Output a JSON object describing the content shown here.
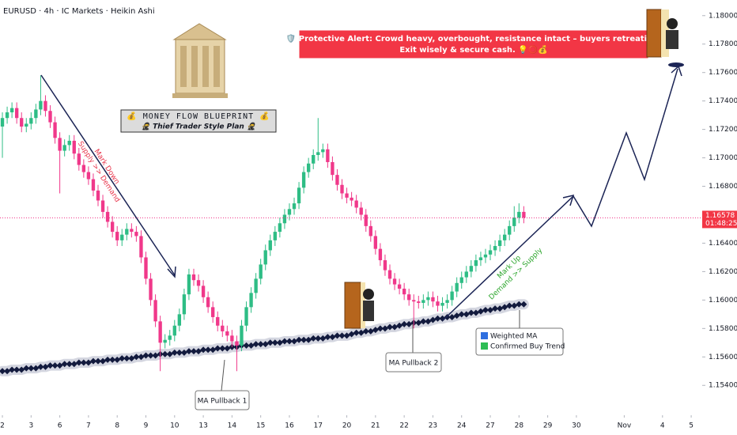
{
  "chart_data": {
    "type": "candlestick",
    "title": "EURUSD · 4h · IC Markets · Heikin Ashi",
    "up_color": "#2ebd85",
    "down_color": "#f0388a",
    "open": [
      1.1722,
      1.1728,
      1.1732,
      1.1735,
      1.1728,
      1.1722,
      1.1724,
      1.1728,
      1.1734,
      1.174,
      1.1733,
      1.1725,
      1.1714,
      1.1705,
      1.1709,
      1.1712,
      1.1703,
      1.1695,
      1.169,
      1.1685,
      1.1677,
      1.167,
      1.1662,
      1.1655,
      1.1648,
      1.1642,
      1.1646,
      1.165,
      1.1648,
      1.1645,
      1.163,
      1.1615,
      1.16,
      1.1585,
      1.157,
      1.1572,
      1.1575,
      1.1582,
      1.159,
      1.1604,
      1.1618,
      1.1614,
      1.161,
      1.1602,
      1.1595,
      1.1588,
      1.1582,
      1.1578,
      1.1575,
      1.1571,
      1.1568,
      1.1582,
      1.1595,
      1.1605,
      1.1615,
      1.1625,
      1.1635,
      1.1642,
      1.1648,
      1.1654,
      1.166,
      1.1664,
      1.1668,
      1.1679,
      1.169,
      1.1696,
      1.1702,
      1.1704,
      1.1706,
      1.1697,
      1.1688,
      1.1681,
      1.1675,
      1.1672,
      1.167,
      1.1665,
      1.166,
      1.1652,
      1.1645,
      1.1636,
      1.1628,
      1.1621,
      1.1615,
      1.1611,
      1.1608,
      1.1604,
      1.16,
      1.1599,
      1.1598,
      1.16,
      1.1602,
      1.1599,
      1.1596,
      1.1598,
      1.16,
      1.1606,
      1.1612,
      1.1616,
      1.162,
      1.1624,
      1.1628,
      1.163,
      1.1632,
      1.1635,
      1.1638,
      1.1642,
      1.1646,
      1.1652,
      1.1658,
      1.1662
    ],
    "high": [
      1.1732,
      1.1736,
      1.1739,
      1.1739,
      1.1732,
      1.1728,
      1.1732,
      1.1738,
      1.1758,
      1.1744,
      1.1737,
      1.1729,
      1.1718,
      1.1713,
      1.1716,
      1.1716,
      1.1707,
      1.1699,
      1.1694,
      1.1689,
      1.1681,
      1.1674,
      1.1666,
      1.1659,
      1.1652,
      1.165,
      1.1654,
      1.1654,
      1.1652,
      1.1649,
      1.1634,
      1.1619,
      1.1604,
      1.1589,
      1.1576,
      1.1579,
      1.1586,
      1.1594,
      1.1608,
      1.1622,
      1.1622,
      1.1618,
      1.1614,
      1.1606,
      1.1599,
      1.1592,
      1.1586,
      1.1582,
      1.1579,
      1.1575,
      1.1586,
      1.1599,
      1.1609,
      1.1619,
      1.1629,
      1.1639,
      1.1646,
      1.1652,
      1.1658,
      1.1664,
      1.1668,
      1.1672,
      1.1683,
      1.1694,
      1.17,
      1.1706,
      1.1728,
      1.171,
      1.171,
      1.1701,
      1.1692,
      1.1685,
      1.1679,
      1.1676,
      1.1674,
      1.1669,
      1.1664,
      1.1656,
      1.1649,
      1.164,
      1.1632,
      1.1625,
      1.1619,
      1.1615,
      1.1612,
      1.1608,
      1.1604,
      1.1603,
      1.1604,
      1.1606,
      1.1606,
      1.1603,
      1.1602,
      1.1604,
      1.161,
      1.1616,
      1.162,
      1.1624,
      1.1628,
      1.1632,
      1.1634,
      1.1636,
      1.1639,
      1.1642,
      1.1646,
      1.165,
      1.1656,
      1.1666,
      1.1668,
      1.1666
    ],
    "low": [
      1.17,
      1.1724,
      1.1728,
      1.1724,
      1.1718,
      1.1718,
      1.172,
      1.1724,
      1.173,
      1.1729,
      1.1721,
      1.171,
      1.1675,
      1.1701,
      1.1705,
      1.1699,
      1.1691,
      1.1686,
      1.1681,
      1.1673,
      1.1666,
      1.1658,
      1.1651,
      1.1644,
      1.1638,
      1.1638,
      1.1642,
      1.1644,
      1.1641,
      1.1626,
      1.1611,
      1.1596,
      1.1581,
      1.155,
      1.1566,
      1.1568,
      1.1571,
      1.1578,
      1.1586,
      1.16,
      1.161,
      1.1606,
      1.1598,
      1.1591,
      1.1584,
      1.1578,
      1.1574,
      1.1571,
      1.1567,
      1.155,
      1.1564,
      1.1578,
      1.1591,
      1.1601,
      1.1611,
      1.1621,
      1.1631,
      1.1638,
      1.1644,
      1.165,
      1.1656,
      1.166,
      1.1664,
      1.1675,
      1.1686,
      1.1692,
      1.1698,
      1.17,
      1.1693,
      1.1684,
      1.1677,
      1.1671,
      1.1668,
      1.1666,
      1.1661,
      1.1656,
      1.1648,
      1.1641,
      1.1632,
      1.1624,
      1.1617,
      1.1611,
      1.1607,
      1.1604,
      1.16,
      1.1596,
      1.158,
      1.1594,
      1.1594,
      1.1596,
      1.1595,
      1.1592,
      1.1592,
      1.1594,
      1.1596,
      1.1602,
      1.1608,
      1.1612,
      1.1616,
      1.162,
      1.1624,
      1.1626,
      1.1628,
      1.1631,
      1.1634,
      1.1638,
      1.1642,
      1.1648,
      1.1654,
      1.1654
    ],
    "close": [
      1.1728,
      1.1732,
      1.1735,
      1.1728,
      1.1722,
      1.1724,
      1.1728,
      1.1734,
      1.174,
      1.1733,
      1.1725,
      1.1714,
      1.1705,
      1.1709,
      1.1712,
      1.1703,
      1.1695,
      1.169,
      1.1685,
      1.1677,
      1.167,
      1.1662,
      1.1655,
      1.1648,
      1.1642,
      1.1646,
      1.165,
      1.1648,
      1.1645,
      1.163,
      1.1615,
      1.16,
      1.1585,
      1.157,
      1.1572,
      1.1575,
      1.1582,
      1.159,
      1.1604,
      1.1618,
      1.1614,
      1.161,
      1.1602,
      1.1595,
      1.1588,
      1.1582,
      1.1578,
      1.1575,
      1.1571,
      1.1568,
      1.1582,
      1.1595,
      1.1605,
      1.1615,
      1.1625,
      1.1635,
      1.1642,
      1.1648,
      1.1654,
      1.166,
      1.1664,
      1.1668,
      1.1679,
      1.169,
      1.1696,
      1.1702,
      1.1704,
      1.1706,
      1.1697,
      1.1688,
      1.1681,
      1.1675,
      1.1672,
      1.167,
      1.1665,
      1.166,
      1.1652,
      1.1645,
      1.1636,
      1.1628,
      1.1621,
      1.1615,
      1.1611,
      1.1608,
      1.1604,
      1.16,
      1.1599,
      1.1598,
      1.16,
      1.1602,
      1.1599,
      1.1596,
      1.1598,
      1.16,
      1.1606,
      1.1612,
      1.1616,
      1.162,
      1.1624,
      1.1628,
      1.163,
      1.1632,
      1.1635,
      1.1638,
      1.1642,
      1.1646,
      1.1652,
      1.1658,
      1.1662,
      1.1658
    ],
    "ma": {
      "name": "Weighted MA",
      "color": "#121a3d",
      "values": [
        1.155,
        1.155,
        1.1551,
        1.1551,
        1.1551,
        1.1552,
        1.1552,
        1.1552,
        1.1553,
        1.1553,
        1.1554,
        1.1554,
        1.1554,
        1.1555,
        1.1555,
        1.1555,
        1.1556,
        1.1556,
        1.1556,
        1.1557,
        1.1557,
        1.1557,
        1.1558,
        1.1558,
        1.1558,
        1.1559,
        1.1559,
        1.1559,
        1.156,
        1.156,
        1.1561,
        1.1561,
        1.1561,
        1.1562,
        1.1562,
        1.1562,
        1.1563,
        1.1563,
        1.1563,
        1.1564,
        1.1564,
        1.1564,
        1.1565,
        1.1565,
        1.1565,
        1.1566,
        1.1566,
        1.1566,
        1.1567,
        1.1567,
        1.1568,
        1.1568,
        1.1568,
        1.1569,
        1.1569,
        1.1569,
        1.157,
        1.157,
        1.157,
        1.1571,
        1.1571,
        1.1571,
        1.1572,
        1.1572,
        1.1572,
        1.1573,
        1.1573,
        1.1573,
        1.1574,
        1.1574,
        1.1575,
        1.1575,
        1.1575,
        1.1576,
        1.1577,
        1.1577,
        1.1578,
        1.1578,
        1.1579,
        1.158,
        1.158,
        1.1581,
        1.1581,
        1.1582,
        1.1583,
        1.1583,
        1.1584,
        1.1584,
        1.1585,
        1.1585,
        1.1586,
        1.1587,
        1.1587,
        1.1588,
        1.1588,
        1.1589,
        1.159,
        1.159,
        1.1591,
        1.1591,
        1.1592,
        1.1593,
        1.1593,
        1.1594,
        1.1594,
        1.1595,
        1.1596,
        1.1596,
        1.1597,
        1.1597
      ]
    },
    "trend_label": "Confirmed Buy Trend",
    "ylim": [
      1.1519,
      1.1811
    ],
    "yticks": [
      {
        "value": 1.18,
        "label": "1.18000"
      },
      {
        "value": 1.178,
        "label": "1.17800"
      },
      {
        "value": 1.176,
        "label": "1.17600"
      },
      {
        "value": 1.174,
        "label": "1.17400"
      },
      {
        "value": 1.172,
        "label": "1.17200"
      },
      {
        "value": 1.17,
        "label": "1.17000"
      },
      {
        "value": 1.168,
        "label": "1.16800"
      },
      {
        "value": 1.166,
        "label": "1.16600"
      },
      {
        "value": 1.164,
        "label": "1.16400"
      },
      {
        "value": 1.162,
        "label": "1.16200"
      },
      {
        "value": 1.16,
        "label": "1.16000"
      },
      {
        "value": 1.158,
        "label": "1.15800"
      },
      {
        "value": 1.156,
        "label": "1.15600"
      },
      {
        "value": 1.154,
        "label": "1.15400"
      }
    ],
    "xlim": [
      -0.5,
      146.3
    ],
    "xticks": [
      {
        "value": 0,
        "label": "2"
      },
      {
        "value": 6,
        "label": "3"
      },
      {
        "value": 12,
        "label": "6"
      },
      {
        "value": 18,
        "label": "7"
      },
      {
        "value": 24,
        "label": "8"
      },
      {
        "value": 30,
        "label": "9"
      },
      {
        "value": 36,
        "label": "10"
      },
      {
        "value": 42,
        "label": "13"
      },
      {
        "value": 48,
        "label": "14"
      },
      {
        "value": 54,
        "label": "15"
      },
      {
        "value": 60,
        "label": "16"
      },
      {
        "value": 66,
        "label": "17"
      },
      {
        "value": 72,
        "label": "20"
      },
      {
        "value": 78,
        "label": "21"
      },
      {
        "value": 84,
        "label": "22"
      },
      {
        "value": 90,
        "label": "23"
      },
      {
        "value": 96,
        "label": "24"
      },
      {
        "value": 102,
        "label": "27"
      },
      {
        "value": 108,
        "label": "28"
      },
      {
        "value": 114,
        "label": "29"
      },
      {
        "value": 120,
        "label": "30"
      },
      {
        "value": 130,
        "label": "Nov"
      },
      {
        "value": 138,
        "label": "4"
      },
      {
        "value": 144,
        "label": "5"
      }
    ],
    "last_price": {
      "value": 1.16578,
      "label": "1.16578"
    },
    "countdown": "01:48:25",
    "annotations": {
      "alert_line1": "🛡️ Protective Alert: Crowd heavy, overbought, resistance intact – buyers retreating.",
      "alert_line2": "Exit wisely & secure cash. 💡⭕💰",
      "blueprint_line1": "💰 MONEY FLOW BLUEPRINT 💰",
      "blueprint_line2": "🥷 Thief Trader Style Plan 🥷",
      "markdown_line1": "Mark Down",
      "markdown_line2": "Supply >> Demand",
      "markup_line1": "Mark Up",
      "markup_line2": "Demand >> Supply",
      "pullback1": "MA Pullback 1",
      "pullback2": "MA Pullback 2"
    }
  }
}
